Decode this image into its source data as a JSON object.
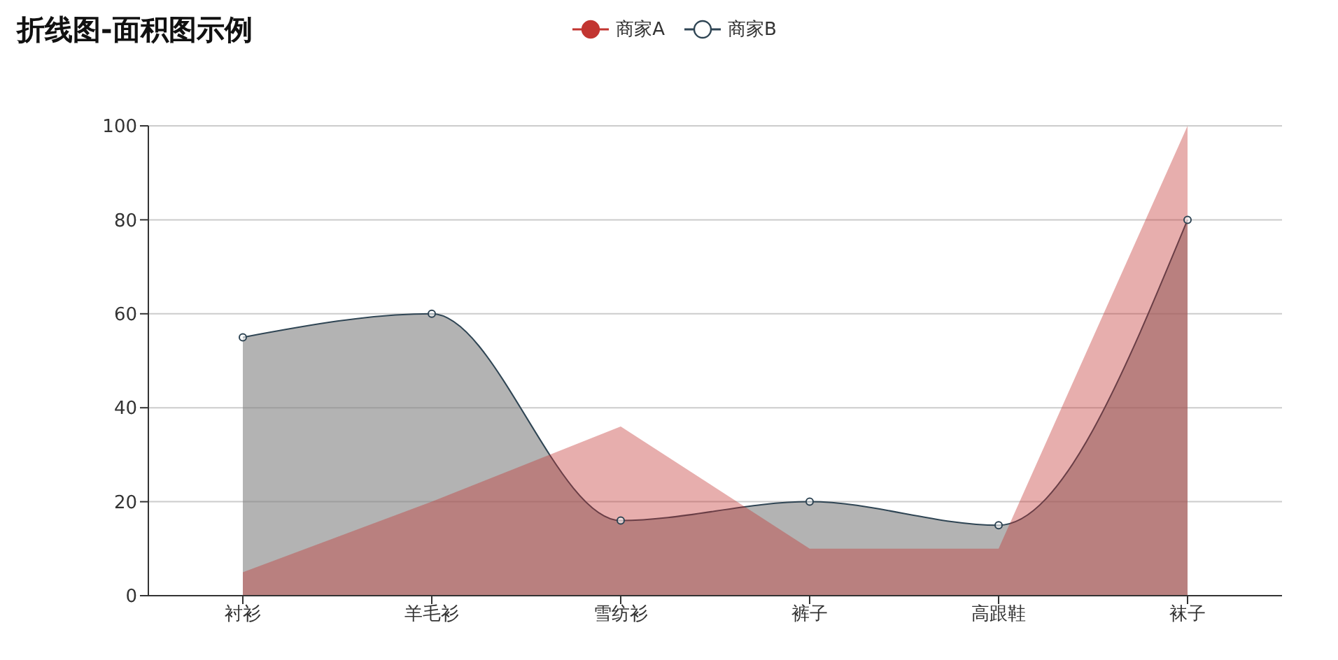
{
  "chart_data": {
    "type": "area",
    "title": "折线图-面积图示例",
    "categories": [
      "衬衫",
      "羊毛衫",
      "雪纺衫",
      "裤子",
      "高跟鞋",
      "袜子"
    ],
    "series": [
      {
        "name": "商家A",
        "color": "#c23531",
        "values": [
          5,
          20,
          36,
          10,
          10,
          100
        ],
        "marker": "none"
      },
      {
        "name": "商家B",
        "color": "#2f4554",
        "values": [
          55,
          60,
          16,
          20,
          15,
          80
        ],
        "marker": "circle"
      }
    ],
    "ylim": [
      0,
      100
    ],
    "yticks": [
      0,
      20,
      40,
      60,
      80,
      100
    ],
    "grid": "y",
    "legend": "top"
  }
}
